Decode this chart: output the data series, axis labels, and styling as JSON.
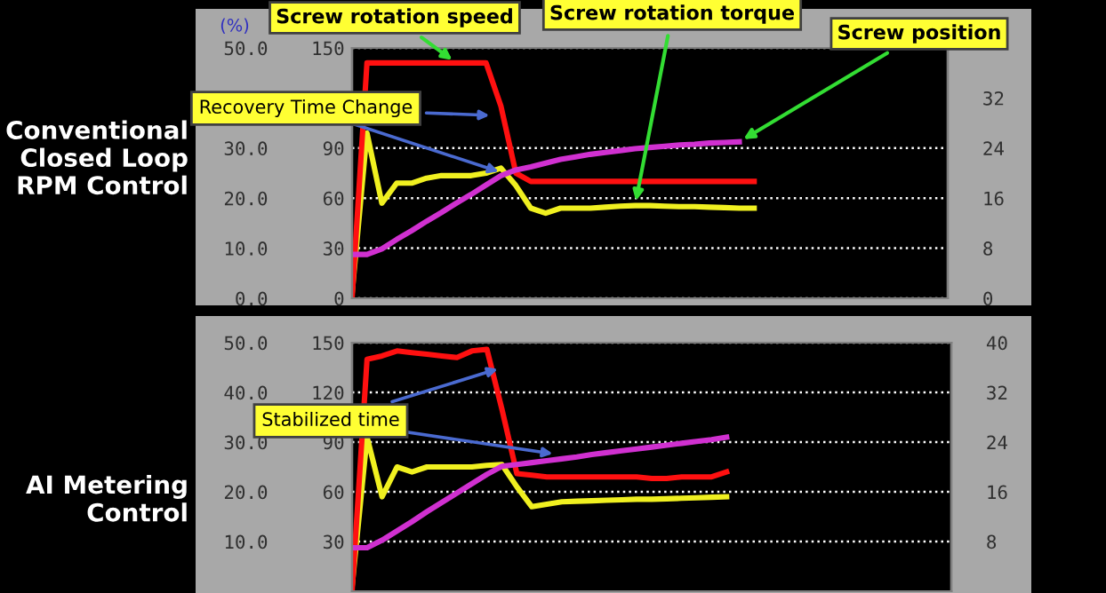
{
  "chart_data": [
    {
      "type": "line",
      "title": "Conventional Closed Loop RPM Control",
      "ylabel": "(%)",
      "annotations": [
        "Recovery Time Change"
      ],
      "grid": true,
      "tick_labels": "y",
      "categories": [
        null,
        null,
        null,
        null,
        null,
        null,
        null,
        null,
        null,
        null,
        null,
        null,
        null,
        null,
        null,
        null,
        null,
        null,
        null,
        null,
        null,
        null,
        null,
        null,
        null,
        null,
        null,
        null,
        null,
        null,
        null,
        null,
        null,
        null,
        null,
        null,
        null,
        null,
        null,
        null,
        null
      ],
      "ylim": [
        0,
        50
      ],
      "yticks": [
        {
          "value": 0,
          "label": "0.0"
        },
        {
          "value": 10,
          "label": "10.0"
        },
        {
          "value": 20,
          "label": "20.0"
        },
        {
          "value": 30,
          "label": "30.0"
        },
        {
          "value": 50,
          "label": "50.0"
        }
      ],
      "y2lim": [
        0,
        150
      ],
      "y2ticks": [
        0,
        30,
        60,
        90,
        150
      ],
      "y3lim": [
        0,
        40
      ],
      "y3ticks": [
        0,
        8,
        16,
        24,
        32
      ],
      "series": [
        {
          "name": "Screw rotation speed",
          "color": "#ff1010",
          "axis": "y2",
          "values": [
            0,
            141,
            141,
            141,
            141,
            141,
            141,
            141,
            141,
            141,
            115,
            75,
            70,
            70,
            70,
            70,
            70,
            70,
            70,
            70,
            70,
            70,
            70,
            70,
            70,
            70,
            70,
            70,
            null,
            null,
            null,
            null,
            null,
            null,
            null,
            null,
            null,
            null,
            null,
            null,
            null
          ]
        },
        {
          "name": "Screw rotation torque",
          "color": "#f0f020",
          "axis": "y",
          "values": [
            1,
            33,
            19,
            23,
            23,
            24,
            24.5,
            24.5,
            24.5,
            25,
            26,
            22.5,
            18,
            17,
            18,
            18,
            18,
            18.2,
            18.4,
            18.5,
            18.5,
            18.4,
            18.3,
            18.3,
            18.2,
            18.1,
            18,
            18,
            null,
            null,
            null,
            null,
            null,
            null,
            null,
            null,
            null,
            null,
            null,
            null,
            null
          ]
        },
        {
          "name": "Screw position",
          "color": "#d030d0",
          "axis": "y3",
          "values": [
            7,
            7,
            7.9,
            9.4,
            10.8,
            12.3,
            13.7,
            15.2,
            16.6,
            18.1,
            19.6,
            20.5,
            21,
            21.6,
            22.2,
            22.6,
            23,
            23.3,
            23.6,
            23.9,
            24.1,
            24.3,
            24.5,
            24.6,
            24.8,
            24.9,
            25,
            null,
            null,
            null,
            null,
            null,
            null,
            null,
            null,
            null,
            null,
            null,
            null,
            null,
            null
          ]
        }
      ]
    },
    {
      "type": "line",
      "title": "AI Metering Control",
      "annotations": [
        "Stabilized time"
      ],
      "grid": true,
      "tick_labels": "y",
      "categories": [
        null,
        null,
        null,
        null,
        null,
        null,
        null,
        null,
        null,
        null,
        null,
        null,
        null,
        null,
        null,
        null,
        null,
        null,
        null,
        null,
        null,
        null,
        null,
        null,
        null,
        null,
        null,
        null,
        null,
        null,
        null,
        null,
        null,
        null,
        null,
        null,
        null,
        null,
        null,
        null,
        null
      ],
      "ylim": [
        0,
        50
      ],
      "yticks": [
        {
          "value": 10,
          "label": "10.0"
        },
        {
          "value": 20,
          "label": "20.0"
        },
        {
          "value": 30,
          "label": "30.0"
        },
        {
          "value": 40,
          "label": "40.0"
        },
        {
          "value": 50,
          "label": "50.0"
        }
      ],
      "y2lim": [
        0,
        150
      ],
      "y2ticks": [
        30,
        60,
        90,
        120,
        150
      ],
      "y3lim": [
        0,
        40
      ],
      "y3ticks": [
        8,
        16,
        24,
        32,
        40
      ],
      "series": [
        {
          "color": "#ff1010",
          "axis": "y2",
          "values": [
            0,
            140,
            142,
            145,
            144,
            143,
            142,
            141,
            145,
            146,
            110,
            71,
            70,
            69,
            69,
            69,
            69,
            69,
            69,
            69,
            68,
            68,
            69,
            69,
            69,
            72,
            null,
            null,
            null,
            null,
            null,
            null,
            null,
            null,
            null,
            null,
            null,
            null,
            null,
            null,
            null
          ]
        },
        {
          "color": "#f0f020",
          "axis": "y",
          "values": [
            1,
            31,
            19,
            25,
            24,
            25,
            25,
            25,
            25,
            25.3,
            25.5,
            21,
            17,
            17.5,
            18,
            18.1,
            18.2,
            18.3,
            18.4,
            18.5,
            18.5,
            18.6,
            18.7,
            18.8,
            18.9,
            19,
            null,
            null,
            null,
            null,
            null,
            null,
            null,
            null,
            null,
            null,
            null,
            null,
            null,
            null,
            null
          ]
        },
        {
          "color": "#d030d0",
          "axis": "y3",
          "values": [
            7,
            7,
            8.2,
            9.7,
            11.2,
            12.8,
            14.3,
            15.8,
            17.3,
            18.8,
            20.1,
            20.4,
            20.7,
            21,
            21.3,
            21.6,
            22,
            22.3,
            22.6,
            22.9,
            23.2,
            23.5,
            23.8,
            24.1,
            24.4,
            24.8,
            null,
            null,
            null,
            null,
            null,
            null,
            null,
            null,
            null,
            null,
            null,
            null,
            null,
            null,
            null
          ]
        }
      ]
    }
  ]
}
